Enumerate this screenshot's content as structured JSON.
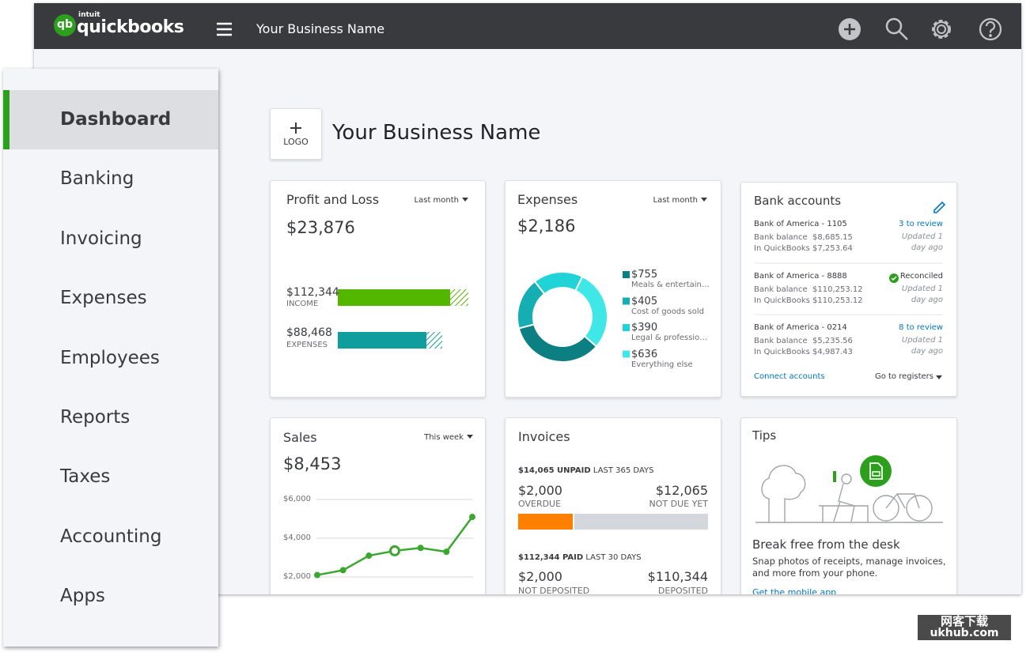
{
  "header": {
    "logo_brand": "intuit",
    "logo_mark": "qb",
    "logo_text": "quickbooks",
    "business_name": "Your Business Name"
  },
  "sidebar": {
    "items": [
      "Dashboard",
      "Banking",
      "Invoicing",
      "Expenses",
      "Employees",
      "Reports",
      "Taxes",
      "Accounting",
      "Apps"
    ]
  },
  "page": {
    "logo_placeholder": "LOGO",
    "title": "Your Business Name"
  },
  "profit_loss": {
    "title": "Profit and Loss",
    "period": "Last month",
    "total": "$23,876",
    "income": "$112,344",
    "income_label": "INCOME",
    "expenses": "$88,468",
    "expenses_label": "EXPENSES"
  },
  "expenses": {
    "title": "Expenses",
    "period": "Last month",
    "total": "$2,186"
  },
  "bank_accounts": {
    "title": "Bank accounts",
    "accounts": [
      {
        "name": "Bank of America - 1105",
        "status": "3 to review",
        "bank_label": "Bank balance",
        "bank_balance": "$8,685.15",
        "qb_label": "In QuickBooks",
        "qb_balance": "$7,253.64",
        "updated": "Updated 1 day ago"
      },
      {
        "name": "Bank of America - 8888",
        "status": "Reconciled",
        "bank_label": "Bank balance",
        "bank_balance": "$110,253.12",
        "qb_label": "In QuickBooks",
        "qb_balance": "$110,253.12",
        "updated": "Updated 1 day ago"
      },
      {
        "name": "Bank of America - 0214",
        "status": "8 to review",
        "bank_label": "Bank balance",
        "bank_balance": "$5,235.56",
        "qb_label": "In QuickBooks",
        "qb_balance": "$4,987.43",
        "updated": "Updated 1 day ago"
      }
    ],
    "connect": "Connect accounts",
    "registers": "Go to registers"
  },
  "sales": {
    "title": "Sales",
    "period": "This week",
    "total": "$8,453"
  },
  "invoices": {
    "title": "Invoices",
    "unpaid": "$14,065 UNPAID",
    "unpaid_period": "LAST 365 DAYS",
    "overdue": "$2,000",
    "overdue_label": "OVERDUE",
    "not_due": "$12,065",
    "not_due_label": "NOT DUE YET",
    "paid": "$112,344 PAID",
    "paid_period": "LAST 30 DAYS",
    "not_deposited": "$2,000",
    "not_deposited_label": "NOT DEPOSITED",
    "deposited": "$110,344",
    "deposited_label": "DEPOSITED"
  },
  "tips": {
    "title": "Tips",
    "headline": "Break free from the desk",
    "text": "Snap photos of receipts, manage invoices, and more from your phone.",
    "link": "Get the mobile app"
  },
  "watermark": {
    "line1": "网客下载",
    "line2": "ukhub.com"
  },
  "chart_data": [
    {
      "type": "donut",
      "categories": [
        "Meals & entertain…",
        "Cost of goods sold",
        "Legal & professio…",
        "Everything else"
      ],
      "values": [
        755,
        405,
        390,
        636
      ],
      "value_labels": [
        "$755",
        "$405",
        "$390",
        "$636"
      ],
      "colors": [
        "#0b7f82",
        "#15aeb3",
        "#1fd3d6",
        "#3fe8e6"
      ]
    },
    {
      "type": "line",
      "values": [
        2100,
        2350,
        3100,
        3350,
        3500,
        3300,
        5100
      ],
      "color": "#3aa82e",
      "ylim": [
        2000,
        6000
      ],
      "yticks": [
        {
          "value": 2000,
          "label": "$2,000"
        },
        {
          "value": 4000,
          "label": "$4,000"
        },
        {
          "value": 6000,
          "label": "$6,000"
        }
      ],
      "grid": true
    }
  ]
}
